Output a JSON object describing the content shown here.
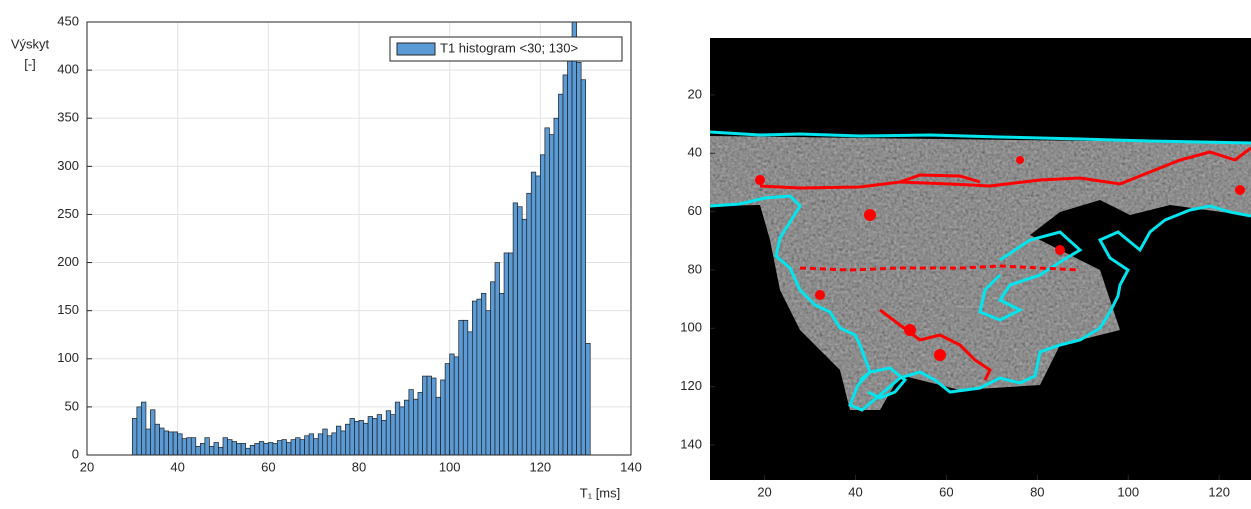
{
  "chart_data": [
    {
      "type": "histogram",
      "y_label": "Výskyt",
      "y_label_unit": "[-]",
      "x_label": "T₁ [ms]",
      "series": [
        {
          "name": "T1 histogram <30; 130>",
          "color": "#5b9bd5",
          "bins": [
            30,
            31,
            32,
            33,
            34,
            35,
            36,
            37,
            38,
            39,
            40,
            41,
            42,
            43,
            44,
            45,
            46,
            47,
            48,
            49,
            50,
            51,
            52,
            53,
            54,
            55,
            56,
            57,
            58,
            59,
            60,
            61,
            62,
            63,
            64,
            65,
            66,
            67,
            68,
            69,
            70,
            71,
            72,
            73,
            74,
            75,
            76,
            77,
            78,
            79,
            80,
            81,
            82,
            83,
            84,
            85,
            86,
            87,
            88,
            89,
            90,
            91,
            92,
            93,
            94,
            95,
            96,
            97,
            98,
            99,
            100,
            101,
            102,
            103,
            104,
            105,
            106,
            107,
            108,
            109,
            110,
            111,
            112,
            113,
            114,
            115,
            116,
            117,
            118,
            119,
            120,
            121,
            122,
            123,
            124,
            125,
            126,
            127,
            128,
            129,
            130,
            131
          ],
          "values": [
            38,
            50,
            55,
            27,
            47,
            32,
            28,
            25,
            24,
            24,
            22,
            17,
            18,
            18,
            9,
            12,
            18,
            9,
            13,
            8,
            18,
            16,
            14,
            12,
            12,
            7,
            10,
            12,
            14,
            12,
            13,
            12,
            15,
            16,
            13,
            16,
            18,
            16,
            20,
            22,
            17,
            22,
            27,
            20,
            23,
            30,
            25,
            32,
            38,
            35,
            36,
            33,
            40,
            38,
            42,
            36,
            46,
            42,
            55,
            50,
            57,
            68,
            58,
            65,
            82,
            82,
            80,
            60,
            78,
            95,
            105,
            102,
            140,
            140,
            128,
            160,
            162,
            168,
            150,
            180,
            200,
            168,
            210,
            210,
            262,
            258,
            245,
            272,
            294,
            290,
            312,
            340,
            333,
            350,
            375,
            395,
            412,
            450,
            408,
            390,
            116
          ]
        }
      ],
      "xlim": [
        20,
        140
      ],
      "xticks": [
        20,
        40,
        60,
        80,
        100,
        120,
        140
      ],
      "ylim": [
        0,
        450
      ],
      "yticks": [
        0,
        50,
        100,
        150,
        200,
        250,
        300,
        350,
        400,
        450
      ],
      "grid": true,
      "legend": "upper right"
    },
    {
      "type": "image",
      "xlim": [
        8,
        127
      ],
      "xticks": [
        20,
        40,
        60,
        80,
        100,
        120
      ],
      "ylim": [
        0.5,
        152
      ],
      "yticks": [
        20,
        40,
        60,
        80,
        100,
        120,
        140
      ],
      "y_reversed": true
    }
  ]
}
